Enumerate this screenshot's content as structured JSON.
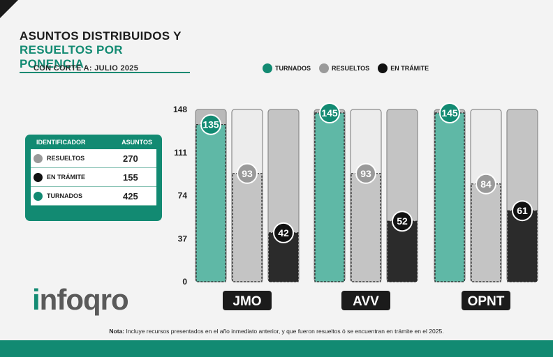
{
  "title": {
    "line1": "ASUNTOS DISTRIBUIDOS Y",
    "line2": "RESUELTOS POR PONENCIA"
  },
  "subtitle": "CON CORTE A: JULIO 2025",
  "legend": [
    {
      "label": "TURNADOS",
      "color": "#128a72"
    },
    {
      "label": "RESUELTOS",
      "color": "#9a9a9a"
    },
    {
      "label": "EN TRÁMITE",
      "color": "#111111"
    }
  ],
  "table": {
    "headers": [
      "IDENTIFICADOR",
      "ASUNTOS"
    ],
    "rows": [
      {
        "label": "RESUELTOS",
        "value": "270",
        "color": "#9a9a9a"
      },
      {
        "label": "EN TRÁMITE",
        "value": "155",
        "color": "#111111"
      },
      {
        "label": "TURNADOS",
        "value": "425",
        "color": "#128a72"
      }
    ]
  },
  "logo": {
    "part1": "i",
    "part2": "nfoqro"
  },
  "note": {
    "bold": "Nota:",
    "text": " Incluye recursos presentados en el año inmediato anterior, y que fueron resueltos ó se encuentran en trámite en el 2025."
  },
  "chart_data": {
    "type": "bar",
    "categories": [
      "JMO",
      "AVV",
      "OPNT"
    ],
    "series": [
      {
        "name": "TURNADOS",
        "values": [
          135,
          145,
          145
        ],
        "color": "#128a72"
      },
      {
        "name": "RESUELTOS",
        "values": [
          93,
          93,
          84
        ],
        "color": "#9a9a9a"
      },
      {
        "name": "EN TRÁMITE",
        "values": [
          42,
          52,
          61
        ],
        "color": "#111111"
      }
    ],
    "yticks": [
      0,
      37,
      74,
      111,
      148
    ],
    "ylim": [
      0,
      148
    ]
  }
}
